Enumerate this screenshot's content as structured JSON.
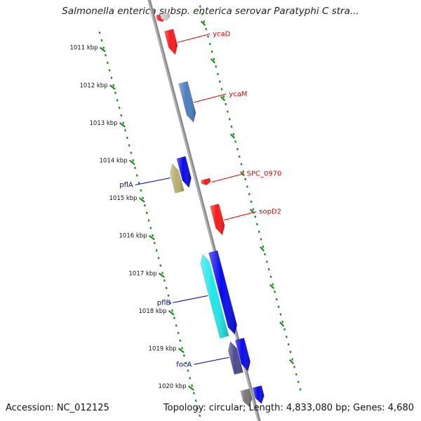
{
  "title": "Salmonella enterica subsp. enterica serovar Paratyphi C stra...",
  "footer": {
    "accession": "Accession: NC_012125",
    "summary": "Topology: circular; Length: 4,833,080 bp; Genes: 4,680"
  },
  "colors": {
    "backbone": "#8a8a8a",
    "tick_marks": "#1e8a1e",
    "reverse_strand_label": "#dd0000",
    "forward_strand_label": "#0000aa"
  },
  "ruler": {
    "labels": [
      "1011 kbp",
      "1012 kbp",
      "1013 kbp",
      "1014 kbp",
      "1015 kbp",
      "1016 kbp",
      "1017 kbp",
      "1018 kbp",
      "1019 kbp",
      "1020 kbp"
    ]
  },
  "genes": [
    {
      "label": "",
      "track": 0.6,
      "start": 1010.55,
      "end": 1010.75,
      "color": "#ff1a1a",
      "dir": 1
    },
    {
      "label": "",
      "track": 0.95,
      "start": 1010.55,
      "end": 1010.75,
      "color": "#cccccc",
      "dir": 1
    },
    {
      "label": "ycaD",
      "track": 0.95,
      "start": 1011.0,
      "end": 1011.65,
      "color": "#ff1a1a",
      "dir": 1
    },
    {
      "label": "ycaM",
      "track": 1.0,
      "start": 1012.4,
      "end": 1013.45,
      "color": "#ff1a1a",
      "dir": 1
    },
    {
      "label": "",
      "track": 1.0,
      "start": 1012.4,
      "end": 1013.45,
      "color": "#4a7fc1",
      "dir": 1
    },
    {
      "label": "SPC_0970",
      "track": 0.75,
      "start": 1014.95,
      "end": 1015.1,
      "color": "#ff1a1a",
      "dir": 1
    },
    {
      "label": "sopD2",
      "track": 0.95,
      "start": 1015.65,
      "end": 1016.45,
      "color": "#ff1a1a",
      "dir": 1
    },
    {
      "label": "pflA",
      "track": -1.6,
      "start": 1014.35,
      "end": 1015.1,
      "color": "#b5b06a",
      "dir": -1
    },
    {
      "label": "",
      "track": -0.75,
      "start": 1014.25,
      "end": 1015.05,
      "color": "#0a0aee",
      "dir": 1
    },
    {
      "label": "pflB",
      "track": -1.05,
      "start": 1016.8,
      "end": 1019.0,
      "color": "#1ee8e8",
      "dir": -1
    },
    {
      "label": "",
      "track": -0.15,
      "start": 1016.8,
      "end": 1019.0,
      "color": "#0a0aee",
      "dir": 1
    },
    {
      "label": "focA",
      "track": -0.65,
      "start": 1019.15,
      "end": 1020.0,
      "color": "#4c4a8c",
      "dir": -1
    },
    {
      "label": "",
      "track": 0.15,
      "start": 1019.15,
      "end": 1020.0,
      "color": "#0a0aee",
      "dir": 1
    },
    {
      "label": "",
      "track": -0.5,
      "start": 1020.45,
      "end": 1020.9,
      "color": "#777777",
      "dir": 1
    },
    {
      "label": "",
      "track": 0.55,
      "start": 1020.45,
      "end": 1020.9,
      "color": "#0a0aee",
      "dir": 1
    }
  ]
}
